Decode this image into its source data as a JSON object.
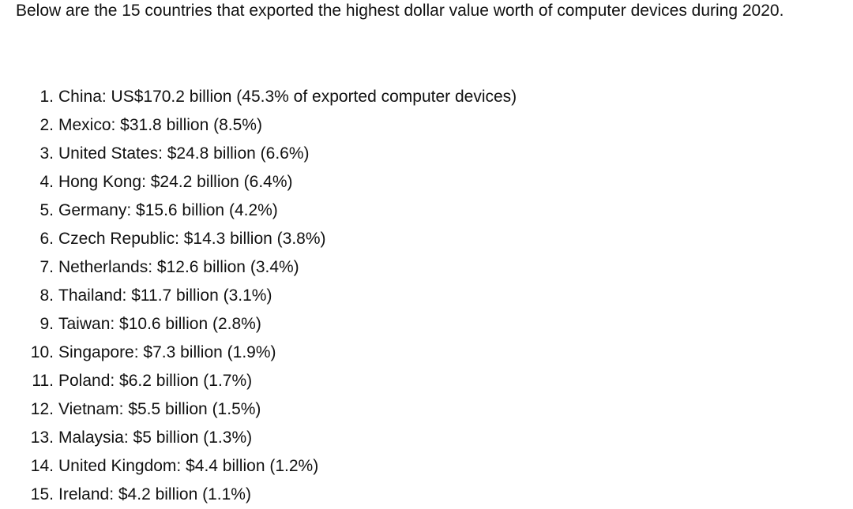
{
  "intro_text": "Below are the 15 countries that exported the highest dollar value worth of computer devices during 2020.",
  "countries": [
    {
      "num": "1.",
      "text": "China: US$170.2 billion (45.3% of exported computer devices)"
    },
    {
      "num": "2.",
      "text": "Mexico: $31.8 billion (8.5%)"
    },
    {
      "num": "3.",
      "text": "United States: $24.8 billion (6.6%)"
    },
    {
      "num": "4.",
      "text": "Hong Kong: $24.2 billion (6.4%)"
    },
    {
      "num": "5.",
      "text": "Germany: $15.6 billion (4.2%)"
    },
    {
      "num": "6.",
      "text": "Czech Republic: $14.3 billion (3.8%)"
    },
    {
      "num": "7.",
      "text": "Netherlands: $12.6 billion (3.4%)"
    },
    {
      "num": "8.",
      "text": "Thailand: $11.7 billion (3.1%)"
    },
    {
      "num": "9.",
      "text": "Taiwan: $10.6 billion (2.8%)"
    },
    {
      "num": "10.",
      "text": "Singapore: $7.3 billion (1.9%)"
    },
    {
      "num": "11.",
      "text": "Poland: $6.2 billion (1.7%)"
    },
    {
      "num": "12.",
      "text": "Vietnam: $5.5 billion (1.5%)"
    },
    {
      "num": "13.",
      "text": "Malaysia: $5 billion (1.3%)"
    },
    {
      "num": "14.",
      "text": "United Kingdom: $4.4 billion (1.2%)"
    },
    {
      "num": "15.",
      "text": "Ireland: $4.2 billion (1.1%)"
    }
  ]
}
